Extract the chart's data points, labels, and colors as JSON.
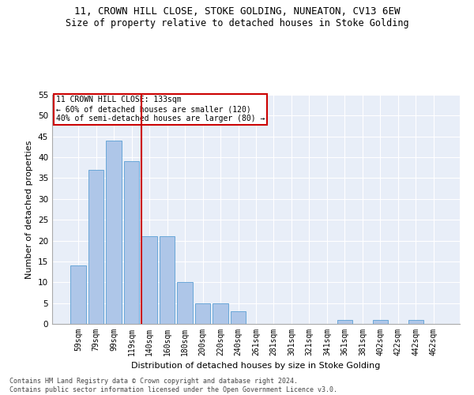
{
  "title": "11, CROWN HILL CLOSE, STOKE GOLDING, NUNEATON, CV13 6EW",
  "subtitle": "Size of property relative to detached houses in Stoke Golding",
  "xlabel": "Distribution of detached houses by size in Stoke Golding",
  "ylabel": "Number of detached properties",
  "bar_labels": [
    "59sqm",
    "79sqm",
    "99sqm",
    "119sqm",
    "140sqm",
    "160sqm",
    "180sqm",
    "200sqm",
    "220sqm",
    "240sqm",
    "261sqm",
    "281sqm",
    "301sqm",
    "321sqm",
    "341sqm",
    "361sqm",
    "381sqm",
    "402sqm",
    "422sqm",
    "442sqm",
    "462sqm"
  ],
  "bar_values": [
    14,
    37,
    44,
    39,
    21,
    21,
    10,
    5,
    5,
    3,
    0,
    0,
    0,
    0,
    0,
    1,
    0,
    1,
    0,
    1,
    0
  ],
  "bar_color": "#aec6e8",
  "bar_edge_color": "#5a9fd4",
  "annotation_line1": "11 CROWN HILL CLOSE: 133sqm",
  "annotation_line2": "← 60% of detached houses are smaller (120)",
  "annotation_line3": "40% of semi-detached houses are larger (80) →",
  "vline_color": "#cc0000",
  "annotation_box_edge": "#cc0000",
  "footer_line1": "Contains HM Land Registry data © Crown copyright and database right 2024.",
  "footer_line2": "Contains public sector information licensed under the Open Government Licence v3.0.",
  "ylim": [
    0,
    55
  ],
  "yticks": [
    0,
    5,
    10,
    15,
    20,
    25,
    30,
    35,
    40,
    45,
    50,
    55
  ],
  "bg_color": "#e8eef8",
  "title_fontsize": 9,
  "subtitle_fontsize": 8.5
}
